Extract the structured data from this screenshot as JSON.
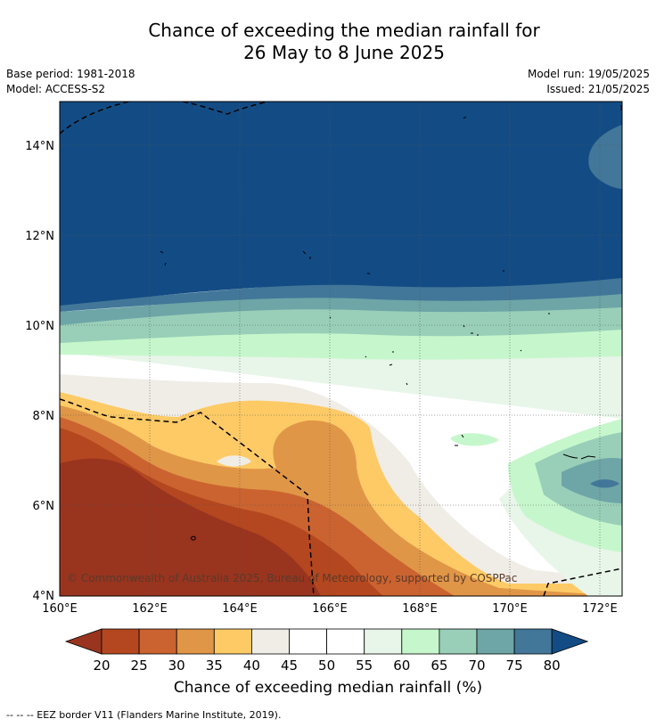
{
  "title": {
    "line1": "Chance of exceeding the median rainfall for",
    "line2": "26 May to 8 June 2025"
  },
  "meta": {
    "base_period": "Base period: 1981-2018",
    "model": "Model: ACCESS-S2",
    "model_run": "Model run: 19/05/2025",
    "issued": "Issued: 21/05/2025"
  },
  "map": {
    "copyright": "© Commonwealth of Australia 2025, Bureau of Meteorology, supported by COSPPac",
    "lon_ticks": [
      "160°E",
      "162°E",
      "164°E",
      "166°E",
      "168°E",
      "170°E",
      "172°E"
    ],
    "lat_ticks": [
      "4°N",
      "6°N",
      "8°N",
      "10°N",
      "12°N",
      "14°N"
    ],
    "lon_range": [
      160,
      172.5
    ],
    "lat_range": [
      4,
      15
    ]
  },
  "colorbar": {
    "ticks": [
      "20",
      "25",
      "30",
      "35",
      "40",
      "45",
      "50",
      "55",
      "60",
      "65",
      "70",
      "75",
      "80"
    ],
    "colors": [
      "#99341f",
      "#b4471f",
      "#cb6330",
      "#e09647",
      "#fdca66",
      "#f0ede7",
      "#ffffff",
      "#ffffff",
      "#e8f5e9",
      "#c6f7cc",
      "#99cfb8",
      "#6ea5a7",
      "#427799",
      "#134c84"
    ],
    "label": "Chance of exceeding median rainfall (%)"
  },
  "footnote": "--  --  -- EEZ border V11 (Flanders Marine Institute, 2019)."
}
